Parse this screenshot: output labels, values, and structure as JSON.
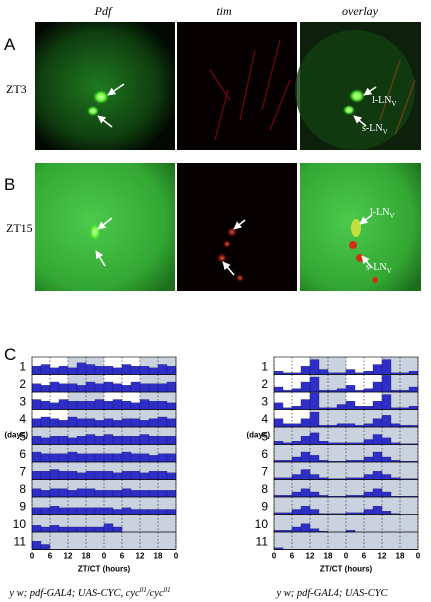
{
  "panels": {
    "a": "A",
    "b": "B",
    "c": "C"
  },
  "headers": [
    "Pdf",
    "tim",
    "overlay"
  ],
  "rows": [
    "ZT3",
    "ZT15"
  ],
  "annotations": {
    "row_a": [
      [
        "l-LN",
        "V"
      ],
      [
        "s-LN",
        "V"
      ]
    ],
    "row_b": [
      [
        "l-LN",
        "V"
      ],
      [
        "s-LN",
        "V"
      ]
    ]
  },
  "actograms": [
    {
      "day_labels": [
        "1",
        "2",
        "3",
        "4",
        "5",
        "6",
        "7",
        "8",
        "9",
        "10",
        "11"
      ],
      "ylabel": "(days)",
      "xlabel": "ZT/CT (hours)",
      "xlim": [
        0,
        48
      ],
      "ylim": [
        0,
        1
      ],
      "xticks": [
        0,
        6,
        12,
        18,
        {
          "value": 24,
          "label": "0"
        },
        {
          "value": 30,
          "label": "6"
        },
        {
          "value": 36,
          "label": "12"
        },
        {
          "value": 42,
          "label": "18"
        },
        {
          "value": 48,
          "label": "0"
        }
      ],
      "bin_hours": 3,
      "light_days": 4,
      "color": "#2f2fc8",
      "activity": [
        [
          0.5,
          0.6,
          0.4,
          0.5,
          0.4,
          0.7,
          0.6,
          0.5
        ],
        [
          0.5,
          0.4,
          0.6,
          0.5,
          0.5,
          0.4,
          0.6,
          0.5
        ],
        [
          0.6,
          0.5,
          0.4,
          0.6,
          0.5,
          0.5,
          0.5,
          0.6
        ],
        [
          0.5,
          0.6,
          0.5,
          0.4,
          0.6,
          0.5,
          0.5,
          0.4
        ],
        [
          0.5,
          0.4,
          0.5,
          0.5,
          0.4,
          0.5,
          0.6,
          0.5
        ],
        [
          0.6,
          0.5,
          0.5,
          0.5,
          0.6,
          0.5,
          0.5,
          0.5
        ],
        [
          0.5,
          0.5,
          0.6,
          0.5,
          0.5,
          0.4,
          0.5,
          0.5
        ],
        [
          0.5,
          0.4,
          0.5,
          0.5,
          0.4,
          0.5,
          0.5,
          0.4
        ],
        [
          0.4,
          0.4,
          0.5,
          0.4,
          0.4,
          0.4,
          0.4,
          0.4
        ],
        [
          0.4,
          0.3,
          0.4,
          0.3,
          0.3,
          0.3,
          0.3,
          0.3
        ],
        [
          0.5,
          0.3,
          0,
          0,
          0,
          0,
          0,
          0
        ]
      ],
      "caption": [
        "y w; pdf-GAL4; UAS-CYC, cyc",
        "01",
        "/cyc",
        "01"
      ]
    },
    {
      "day_labels": [
        "1",
        "2",
        "3",
        "4",
        "5",
        "6",
        "7",
        "8",
        "9",
        "10",
        "11"
      ],
      "ylabel": "(days)",
      "xlabel": "ZT/CT (hours)",
      "xlim": [
        0,
        48
      ],
      "ylim": [
        0,
        1
      ],
      "xticks": [
        0,
        6,
        12,
        18,
        {
          "value": 24,
          "label": "0"
        },
        {
          "value": 30,
          "label": "6"
        },
        {
          "value": 36,
          "label": "12"
        },
        {
          "value": 42,
          "label": "18"
        },
        {
          "value": 48,
          "label": "0"
        }
      ],
      "bin_hours": 3,
      "light_days": 4,
      "color": "#2f2fc8",
      "activity": [
        [
          0.2,
          0.1,
          0.1,
          0.5,
          0.9,
          0.3,
          0.1,
          0.1
        ],
        [
          0.3,
          0.1,
          0.2,
          0.6,
          0.9,
          0.1,
          0.1,
          0.2
        ],
        [
          0.4,
          0.1,
          0.2,
          0.6,
          1.0,
          0.1,
          0.1,
          0.3
        ],
        [
          0.5,
          0.2,
          0.2,
          0.5,
          0.9,
          0.1,
          0.1,
          0.2
        ],
        [
          0.2,
          0.1,
          0.2,
          0.5,
          0.7,
          0.2,
          0.1,
          0.1
        ],
        [
          0.1,
          0.1,
          0.3,
          0.6,
          0.4,
          0.1,
          0.05,
          0.05
        ],
        [
          0.1,
          0.1,
          0.3,
          0.6,
          0.3,
          0.1,
          0.05,
          0.05
        ],
        [
          0.1,
          0.1,
          0.3,
          0.5,
          0.3,
          0.1,
          0.05,
          0.05
        ],
        [
          0.1,
          0.1,
          0.3,
          0.5,
          0.3,
          0.05,
          0.05,
          0.05
        ],
        [
          0.1,
          0.1,
          0.3,
          0.5,
          0.2,
          0.05,
          0,
          0
        ],
        [
          0.1,
          0,
          0,
          0,
          0,
          0,
          0,
          0
        ]
      ],
      "caption": [
        "y w; pdf-GAL4; UAS-CYC"
      ]
    }
  ]
}
